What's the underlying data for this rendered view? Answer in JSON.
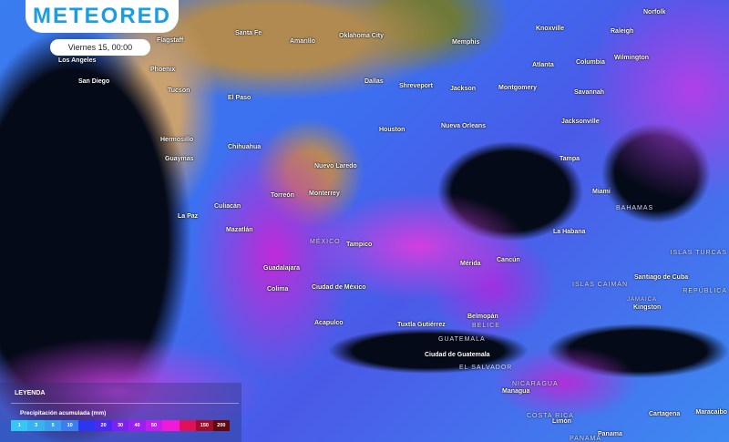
{
  "brand": {
    "logo": "METEORED",
    "brand_color": "#1a9ee0"
  },
  "timestamp": "Viernes 15, 00:00",
  "legend": {
    "title": "LEYENDA",
    "subtitle": "Precipitación acumulada (mm)",
    "scale": [
      {
        "label": "1",
        "color": "#36c6f4"
      },
      {
        "label": "3",
        "color": "#38b3f2"
      },
      {
        "label": "5",
        "color": "#3aa0ee"
      },
      {
        "label": "10",
        "color": "#3a7ef0"
      },
      {
        "label": "",
        "color": "#2a36f0"
      },
      {
        "label": "20",
        "color": "#4a2af0"
      },
      {
        "label": "30",
        "color": "#7a22f0"
      },
      {
        "label": "40",
        "color": "#9c1ef0"
      },
      {
        "label": "50",
        "color": "#c21ef0"
      },
      {
        "label": "",
        "color": "#f01ad8"
      },
      {
        "label": "",
        "color": "#e0105a"
      },
      {
        "label": "150",
        "color": "#a00c2a"
      },
      {
        "label": "200",
        "color": "#600810"
      }
    ]
  },
  "cities": [
    "Flagstaff",
    "Santa Fe",
    "Amarillo",
    "Oklahoma City",
    "Memphis",
    "Knoxville",
    "Raleigh",
    "Norfolk",
    "Los Angeles",
    "San Diego",
    "Phoenix",
    "Tucson",
    "El Paso",
    "Dallas",
    "Shreveport",
    "Jackson",
    "Montgomery",
    "Atlanta",
    "Columbia",
    "Wilmington",
    "Savannah",
    "Hermosillo",
    "Chihuahua",
    "Guaymas",
    "Houston",
    "Nueva Orleans",
    "Jacksonville",
    "Tampa",
    "Nuevo Laredo",
    "Torreón",
    "Monterrey",
    "Miami",
    "Culiacán",
    "La Paz",
    "Mazatlán",
    "Tampico",
    "La Habana",
    "Mérida",
    "Cancún",
    "Guadalajara",
    "Colima",
    "Ciudad de México",
    "Santiago de Cuba",
    "Kingston",
    "Acapulco",
    "Tuxtla Gutiérrez",
    "Belmopán",
    "Ciudad de Guatemala",
    "Managua",
    "Limón",
    "Cartagena",
    "Maracaibo",
    "Panama"
  ],
  "countries": [
    "BAHAMAS",
    "MÉXICO",
    "ISLAS TURCAS",
    "ISLAS CAIMÁN",
    "REPÚBLICA",
    "BELICE",
    "GUATEMALA",
    "EL SALVADOR",
    "NICARAGUA",
    "COSTA RICA",
    "PANAMÁ",
    "JAMAICA"
  ]
}
